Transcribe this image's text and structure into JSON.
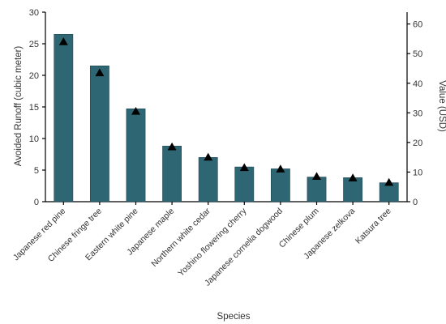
{
  "chart_data": {
    "type": "bar",
    "title": "",
    "xlabel": "Species",
    "ylabel": "Avoided Runoff (cubic meter)",
    "y2label": "Value (USD)",
    "ylim": [
      0,
      30
    ],
    "y2lim": [
      0,
      64
    ],
    "yticks": [
      0,
      5,
      10,
      15,
      20,
      25,
      30
    ],
    "y2ticks": [
      0,
      10,
      20,
      30,
      40,
      50,
      60
    ],
    "grid": false,
    "legend": "none",
    "bar_color": "#2e6673",
    "marker_color": "#000000",
    "categories": [
      "Japanese red pine",
      "Chinese fringe tree",
      "Eastern white pine",
      "Japanese maple",
      "Northern white cedar",
      "Yoshino flowering cherry",
      "Japanese cornelia dogwood",
      "Chinese plum",
      "Japanese zelkova",
      "Katsura tree"
    ],
    "series": [
      {
        "type": "bar",
        "axis": "left",
        "values": [
          26.5,
          21.5,
          14.7,
          8.8,
          7.0,
          5.5,
          5.2,
          3.9,
          3.8,
          3.0
        ]
      },
      {
        "type": "marker",
        "marker": "triangle",
        "axis": "right",
        "values": [
          54,
          43.5,
          30.5,
          18.5,
          15,
          11.5,
          11,
          8.5,
          8,
          6.5
        ]
      }
    ]
  }
}
